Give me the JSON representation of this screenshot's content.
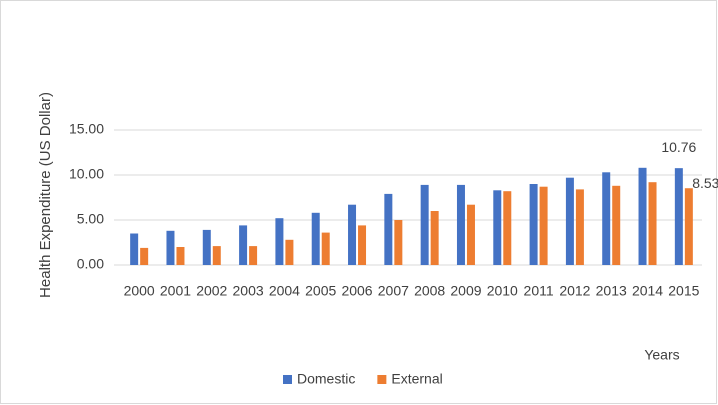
{
  "chart_data": {
    "type": "bar",
    "y_label": "Health Expenditure (US Dollar)",
    "x_label": "Years",
    "categories": [
      "2000",
      "2001",
      "2002",
      "2003",
      "2004",
      "2005",
      "2006",
      "2007",
      "2008",
      "2009",
      "2010",
      "2011",
      "2012",
      "2013",
      "2014",
      "2015"
    ],
    "series": [
      {
        "name": "Domestic",
        "color": "#4472c4",
        "values": [
          3.5,
          3.8,
          3.9,
          4.4,
          5.2,
          5.8,
          6.7,
          7.9,
          8.9,
          8.9,
          8.3,
          9.0,
          9.7,
          10.3,
          10.8,
          10.76
        ]
      },
      {
        "name": "External",
        "color": "#ed7d31",
        "values": [
          1.9,
          2.0,
          2.1,
          2.1,
          2.8,
          3.6,
          4.4,
          5.0,
          6.0,
          6.7,
          8.2,
          8.7,
          8.4,
          8.8,
          9.2,
          8.53
        ]
      }
    ],
    "ylim": [
      0,
      15
    ],
    "yticks": [
      {
        "value": 0,
        "label": "0.00"
      },
      {
        "value": 5,
        "label": "5.00"
      },
      {
        "value": 10,
        "label": "10.00"
      },
      {
        "value": 15,
        "label": "15.00"
      }
    ],
    "grid": true,
    "legend": "bottom",
    "data_labels": "last"
  }
}
